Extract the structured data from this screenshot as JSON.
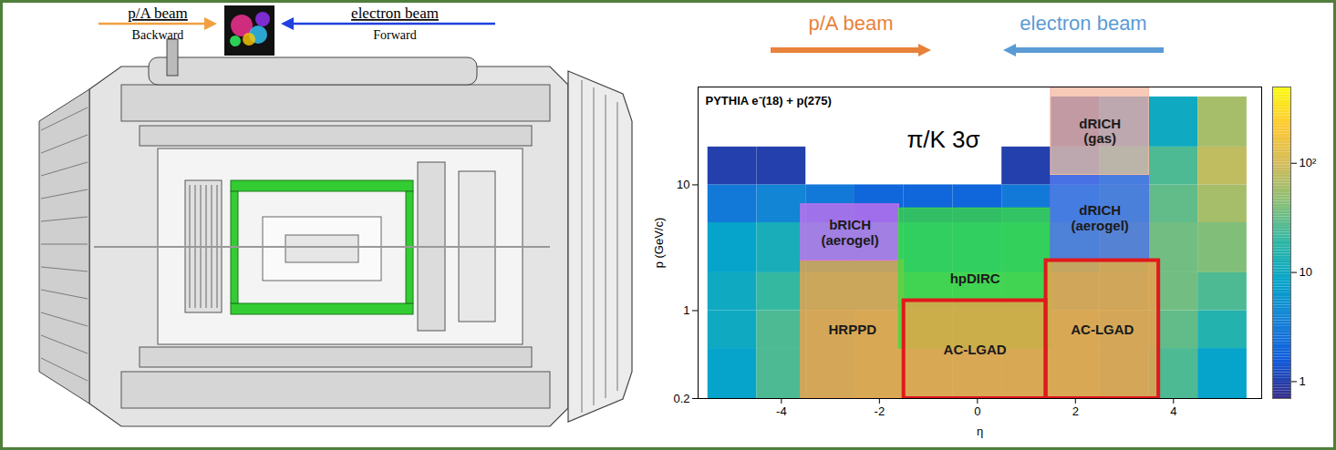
{
  "detector_panel": {
    "beams": [
      {
        "label": "p/A beam",
        "sublabel": "Backward",
        "color": "#f0a040",
        "direction": "right"
      },
      {
        "label": "electron beam",
        "sublabel": "Forward",
        "color": "#2040e0",
        "direction": "left"
      }
    ]
  },
  "chart_data": {
    "type": "heatmap",
    "title": "PYTHIA e⁻(18) + p(275)",
    "annotation": "π/K 3σ",
    "beams": [
      {
        "label": "p/A beam",
        "color": "#e8823a",
        "direction": "right"
      },
      {
        "label": "electron beam",
        "color": "#5b9bd5",
        "direction": "left"
      }
    ],
    "x_label": "η",
    "y_label": "p (GeV/c)",
    "xlim": [
      -5.7,
      5.8
    ],
    "xticks": [
      -4,
      -2,
      0,
      2,
      4
    ],
    "ylim": [
      0.2,
      60
    ],
    "yticks": [
      0.2,
      1,
      10
    ],
    "log": "y",
    "eta_bins": [
      -5.5,
      -4.5,
      -3.5,
      -2.5,
      -1.5,
      -0.5,
      0.5,
      1.5,
      2.5,
      3.5,
      4.5,
      5.5
    ],
    "p_bins": [
      0.2,
      0.5,
      1,
      2,
      5,
      10,
      20,
      50
    ],
    "counts": [
      [
        8,
        25,
        35,
        40,
        40,
        40,
        40,
        40,
        35,
        25,
        8
      ],
      [
        10,
        25,
        35,
        40,
        40,
        40,
        40,
        40,
        35,
        30,
        15
      ],
      [
        10,
        20,
        25,
        25,
        25,
        25,
        25,
        30,
        30,
        35,
        25
      ],
      [
        8,
        12,
        12,
        12,
        10,
        10,
        12,
        18,
        25,
        35,
        40
      ],
      [
        3,
        4,
        3,
        2,
        2,
        2,
        3,
        8,
        15,
        30,
        60
      ],
      [
        1,
        1,
        null,
        null,
        null,
        null,
        1,
        3,
        10,
        25,
        80
      ],
      [
        null,
        null,
        null,
        null,
        null,
        null,
        null,
        1,
        3,
        10,
        60
      ]
    ],
    "colorbar": {
      "range": [
        0.7,
        500
      ],
      "ticks": [
        1,
        10,
        {
          "value": 100,
          "label": "10²"
        }
      ]
    },
    "regions": [
      {
        "name": "HRPPD",
        "eta": [
          -3.6,
          -1.5
        ],
        "p": [
          0.2,
          2.5
        ],
        "color": "#f5a04a"
      },
      {
        "name": "bRICH (aerogel)",
        "eta": [
          -3.6,
          -1.6
        ],
        "p": [
          2.5,
          7
        ],
        "color": "#d070f0"
      },
      {
        "name": "hpDIRC",
        "eta": [
          -1.6,
          1.5
        ],
        "p": [
          0.5,
          6.5
        ],
        "color": "#3ddc3d"
      },
      {
        "name": "AC-LGAD",
        "eta": [
          -1.5,
          1.4
        ],
        "p": [
          0.2,
          1.2
        ],
        "color": "#f5a04a",
        "line_style": "outlined"
      },
      {
        "name": "dRICH (aerogel)",
        "eta": [
          1.5,
          3.5
        ],
        "p": [
          2.5,
          12
        ],
        "color": "#5a6fe8"
      },
      {
        "name": "dRICH (gas)",
        "eta": [
          1.5,
          3.5
        ],
        "p": [
          12,
          60
        ],
        "color": "#f5b8a0"
      },
      {
        "name": "AC-LGAD",
        "eta": [
          1.4,
          3.7
        ],
        "p": [
          0.2,
          2.5
        ],
        "color": "#f5a04a",
        "line_style": "outlined"
      }
    ]
  }
}
